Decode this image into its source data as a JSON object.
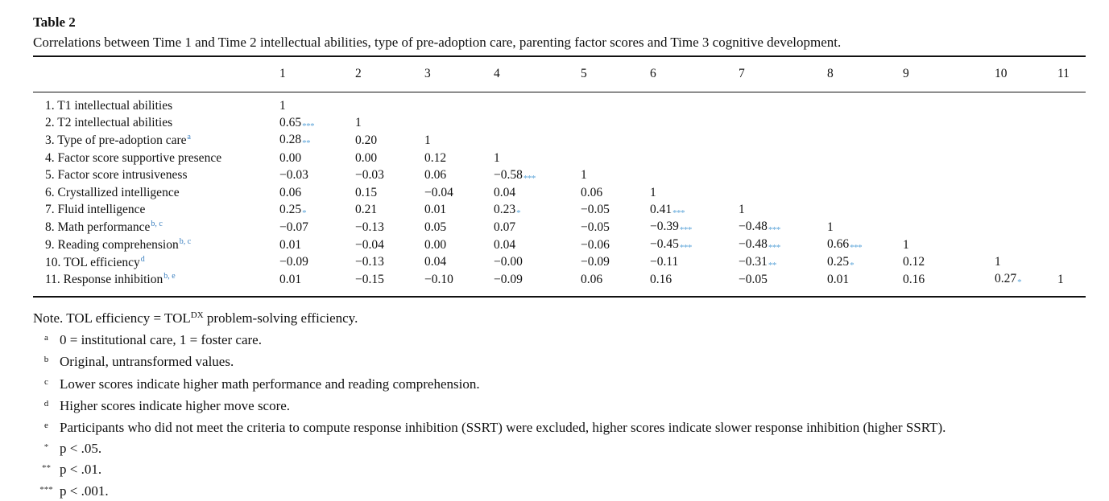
{
  "caption": {
    "label": "Table 2",
    "text": "Correlations between Time 1 and Time 2 intellectual abilities, type of pre-adoption care, parenting factor scores and Time 3 cognitive development."
  },
  "headers": [
    "1",
    "2",
    "3",
    "4",
    "5",
    "6",
    "7",
    "8",
    "9",
    "10",
    "11"
  ],
  "rows": [
    {
      "name": "1. T1 intellectual abilities",
      "sup": "",
      "cells": [
        [
          "1",
          ""
        ],
        [
          "",
          ""
        ],
        [
          "",
          ""
        ],
        [
          "",
          ""
        ],
        [
          "",
          ""
        ],
        [
          "",
          ""
        ],
        [
          "",
          ""
        ],
        [
          "",
          ""
        ],
        [
          "",
          ""
        ],
        [
          "",
          ""
        ],
        [
          "",
          ""
        ]
      ]
    },
    {
      "name": "2. T2 intellectual abilities",
      "sup": "",
      "cells": [
        [
          "0.65",
          "***"
        ],
        [
          "1",
          ""
        ],
        [
          "",
          ""
        ],
        [
          "",
          ""
        ],
        [
          "",
          ""
        ],
        [
          "",
          ""
        ],
        [
          "",
          ""
        ],
        [
          "",
          ""
        ],
        [
          "",
          ""
        ],
        [
          "",
          ""
        ],
        [
          "",
          ""
        ]
      ]
    },
    {
      "name": "3. Type of pre-adoption care",
      "sup": "a",
      "cells": [
        [
          "0.28",
          "**"
        ],
        [
          "0.20",
          ""
        ],
        [
          "1",
          ""
        ],
        [
          "",
          ""
        ],
        [
          "",
          ""
        ],
        [
          "",
          ""
        ],
        [
          "",
          ""
        ],
        [
          "",
          ""
        ],
        [
          "",
          ""
        ],
        [
          "",
          ""
        ],
        [
          "",
          ""
        ]
      ]
    },
    {
      "name": "4. Factor score supportive presence",
      "sup": "",
      "cells": [
        [
          "0.00",
          ""
        ],
        [
          "0.00",
          ""
        ],
        [
          "0.12",
          ""
        ],
        [
          "1",
          ""
        ],
        [
          "",
          ""
        ],
        [
          "",
          ""
        ],
        [
          "",
          ""
        ],
        [
          "",
          ""
        ],
        [
          "",
          ""
        ],
        [
          "",
          ""
        ],
        [
          "",
          ""
        ]
      ]
    },
    {
      "name": "5. Factor score intrusiveness",
      "sup": "",
      "cells": [
        [
          "−0.03",
          ""
        ],
        [
          "−0.03",
          ""
        ],
        [
          "0.06",
          ""
        ],
        [
          "−0.58",
          "***"
        ],
        [
          "1",
          ""
        ],
        [
          "",
          ""
        ],
        [
          "",
          ""
        ],
        [
          "",
          ""
        ],
        [
          "",
          ""
        ],
        [
          "",
          ""
        ],
        [
          "",
          ""
        ]
      ]
    },
    {
      "name": "6. Crystallized intelligence",
      "sup": "",
      "cells": [
        [
          "0.06",
          ""
        ],
        [
          "0.15",
          ""
        ],
        [
          "−0.04",
          ""
        ],
        [
          "0.04",
          ""
        ],
        [
          "0.06",
          ""
        ],
        [
          "1",
          ""
        ],
        [
          "",
          ""
        ],
        [
          "",
          ""
        ],
        [
          "",
          ""
        ],
        [
          "",
          ""
        ],
        [
          "",
          ""
        ]
      ]
    },
    {
      "name": "7. Fluid intelligence",
      "sup": "",
      "cells": [
        [
          "0.25",
          "*"
        ],
        [
          "0.21",
          ""
        ],
        [
          "0.01",
          ""
        ],
        [
          "0.23",
          "*"
        ],
        [
          "−0.05",
          ""
        ],
        [
          "0.41",
          "***"
        ],
        [
          "1",
          ""
        ],
        [
          "",
          ""
        ],
        [
          "",
          ""
        ],
        [
          "",
          ""
        ],
        [
          "",
          ""
        ]
      ]
    },
    {
      "name": "8. Math performance",
      "sup": "b, c",
      "cells": [
        [
          "−0.07",
          ""
        ],
        [
          "−0.13",
          ""
        ],
        [
          "0.05",
          ""
        ],
        [
          "0.07",
          ""
        ],
        [
          "−0.05",
          ""
        ],
        [
          "−0.39",
          "***"
        ],
        [
          "−0.48",
          "***"
        ],
        [
          "1",
          ""
        ],
        [
          "",
          ""
        ],
        [
          "",
          ""
        ],
        [
          "",
          ""
        ]
      ]
    },
    {
      "name": "9. Reading comprehension",
      "sup": "b, c",
      "cells": [
        [
          "0.01",
          ""
        ],
        [
          "−0.04",
          ""
        ],
        [
          "0.00",
          ""
        ],
        [
          "0.04",
          ""
        ],
        [
          "−0.06",
          ""
        ],
        [
          "−0.45",
          "***"
        ],
        [
          "−0.48",
          "***"
        ],
        [
          "0.66",
          "***"
        ],
        [
          "1",
          ""
        ],
        [
          "",
          ""
        ],
        [
          "",
          ""
        ]
      ]
    },
    {
      "name": "10. TOL efficiency",
      "sup": "d",
      "cells": [
        [
          "−0.09",
          ""
        ],
        [
          "−0.13",
          ""
        ],
        [
          "0.04",
          ""
        ],
        [
          "−0.00",
          ""
        ],
        [
          "−0.09",
          ""
        ],
        [
          "−0.11",
          ""
        ],
        [
          "−0.31",
          "**"
        ],
        [
          "0.25",
          "*"
        ],
        [
          "0.12",
          ""
        ],
        [
          "1",
          ""
        ],
        [
          "",
          ""
        ]
      ]
    },
    {
      "name": "11. Response inhibition",
      "sup": "b, e",
      "cells": [
        [
          "0.01",
          ""
        ],
        [
          "−0.15",
          ""
        ],
        [
          "−0.10",
          ""
        ],
        [
          "−0.09",
          ""
        ],
        [
          "0.06",
          ""
        ],
        [
          "0.16",
          ""
        ],
        [
          "−0.05",
          ""
        ],
        [
          "0.01",
          ""
        ],
        [
          "0.16",
          ""
        ],
        [
          "0.27",
          "*"
        ],
        [
          "1",
          ""
        ]
      ]
    }
  ],
  "notes": {
    "main_prefix": "Note. TOL efficiency = TOL",
    "main_sup": "DX",
    "main_suffix": " problem-solving efficiency.",
    "footnotes": [
      {
        "mark": "a",
        "text": "0 = institutional care, 1 = foster care."
      },
      {
        "mark": "b",
        "text": "Original, untransformed values."
      },
      {
        "mark": "c",
        "text": "Lower scores indicate higher math performance and reading comprehension."
      },
      {
        "mark": "d",
        "text": "Higher scores indicate higher move score."
      },
      {
        "mark": "e",
        "text": "Participants who did not meet the criteria to compute response inhibition (SSRT) were excluded, higher scores indicate slower response inhibition (higher SSRT)."
      },
      {
        "mark": "*",
        "text": "p < .05."
      },
      {
        "mark": "**",
        "text": "p < .01."
      },
      {
        "mark": "***",
        "text": "p < .001."
      }
    ]
  }
}
